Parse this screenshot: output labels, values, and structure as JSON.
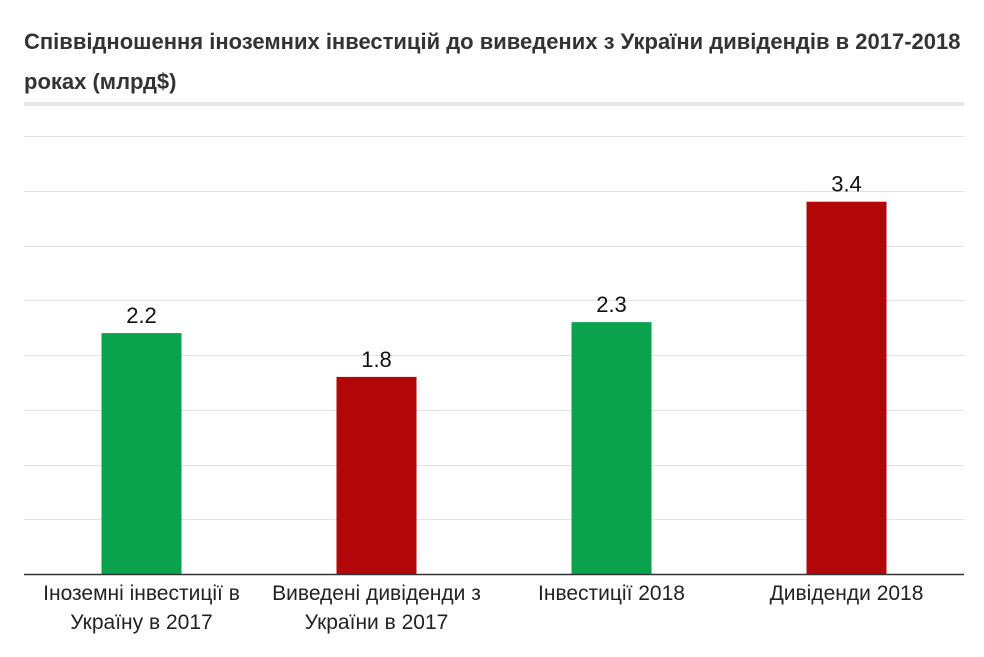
{
  "chart_data": {
    "type": "bar",
    "title": "Співвідношення іноземних інвестицій до виведених з України дивідендів в 2017-2018 роках  (млрд$)",
    "categories": [
      "Іноземні інвестиції в Україну в 2017",
      "Виведені дивіденди з України в 2017",
      "Інвестиції 2018",
      "Дивіденди 2018"
    ],
    "values": [
      2.2,
      1.8,
      2.3,
      3.4
    ],
    "value_labels": [
      "2.2",
      "1.8",
      "2.3",
      "3.4"
    ],
    "bar_colors": [
      "#0ba24d",
      "#b30608",
      "#0ba24d",
      "#b30608"
    ],
    "ylim": [
      0,
      4
    ],
    "grid": true,
    "legend": "none"
  }
}
